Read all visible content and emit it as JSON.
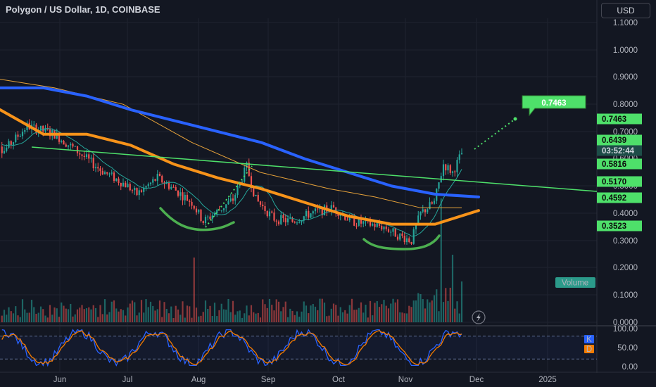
{
  "header": {
    "title": "Polygon / US Dollar, 1D, COINBASE",
    "currency": "USD"
  },
  "colors": {
    "background": "#131722",
    "grid": "#1f2330",
    "up": "#26a69a",
    "down": "#ef5350",
    "ma_blue": "#2962ff",
    "ma_orange": "#f7931a",
    "ma_thin_orange": "#e8a33a",
    "ma_green": "#26a69a",
    "trendline": "#4ee06a",
    "tag_green": "#4ee06a",
    "stoch_k": "#2962ff",
    "stoch_d": "#f57c00"
  },
  "chart_data": {
    "type": "candlestick",
    "title": "Polygon / US Dollar, 1D, COINBASE",
    "x_ticks": [
      "Jun",
      "Jul",
      "Aug",
      "Sep",
      "Oct",
      "Nov",
      "Dec",
      "2025"
    ],
    "y_ticks": [
      "1.1000",
      "1.0000",
      "0.9000",
      "0.8000",
      "0.7000",
      "0.6000",
      "0.5000",
      "0.4000",
      "0.3000",
      "0.2000",
      "0.1000",
      "0.0000"
    ],
    "ylim": [
      0,
      1.1
    ],
    "price_labels": [
      {
        "value": "0.7463",
        "type": "target"
      },
      {
        "value": "0.6439",
        "type": "close"
      },
      {
        "value": "03:52:44",
        "type": "countdown"
      },
      {
        "value": "0.5816",
        "type": "level"
      },
      {
        "value": "0.5170",
        "type": "level"
      },
      {
        "value": "0.4592",
        "type": "level"
      },
      {
        "value": "0.3523",
        "type": "level"
      }
    ],
    "callout": "0.7463",
    "volume_label": "Volume",
    "moving_averages": [
      {
        "color": "#2962ff",
        "values": [
          0.86,
          0.86,
          0.83,
          0.78,
          0.74,
          0.7,
          0.66,
          0.6,
          0.55,
          0.5,
          0.47,
          0.46
        ]
      },
      {
        "color": "#f7931a",
        "values": [
          0.78,
          0.69,
          0.69,
          0.65,
          0.58,
          0.53,
          0.49,
          0.44,
          0.39,
          0.36,
          0.36,
          0.41
        ]
      }
    ],
    "oscillator": {
      "ticks": [
        "100.00",
        "50.00",
        "0.00"
      ],
      "ylim": [
        0,
        100
      ],
      "levels": [
        80,
        20
      ],
      "legend": [
        "K",
        "D"
      ]
    }
  }
}
